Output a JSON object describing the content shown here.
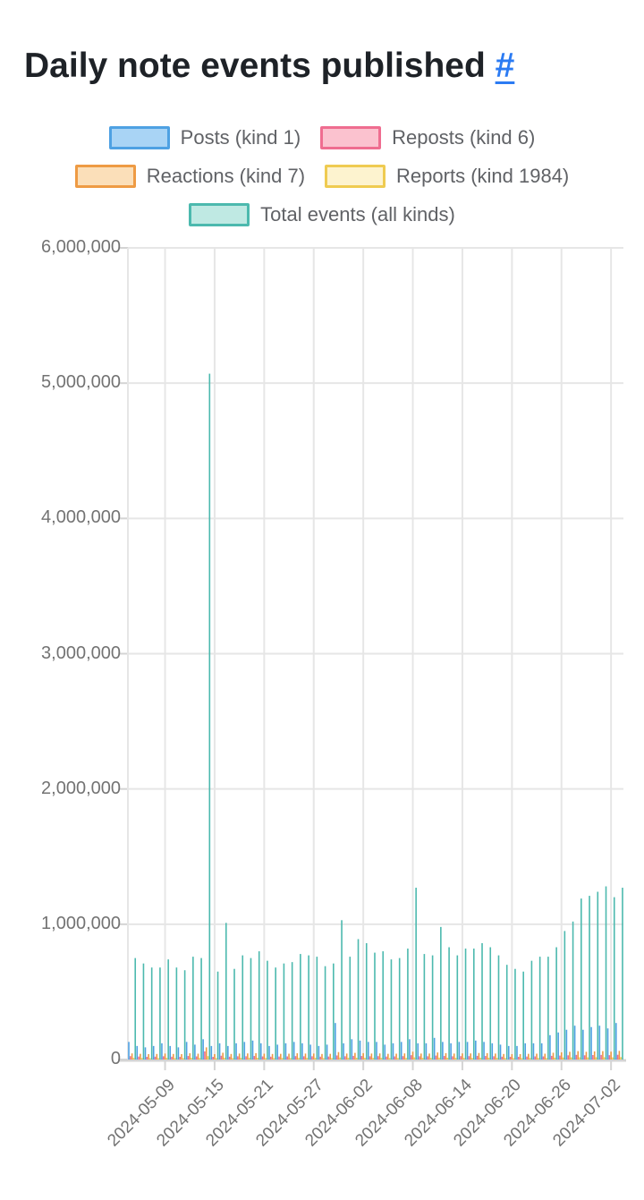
{
  "title": {
    "text": "Daily note events published",
    "anchor": "#"
  },
  "legend": {
    "rows": [
      [
        0,
        1
      ],
      [
        2,
        3
      ],
      [
        4
      ]
    ],
    "items": [
      {
        "label": "Posts (kind 1)",
        "fill": "#a9d4f5",
        "border": "#4ea1e3"
      },
      {
        "label": "Reposts (kind 6)",
        "fill": "#fbc2cf",
        "border": "#ef6d90"
      },
      {
        "label": "Reactions (kind 7)",
        "fill": "#fbdfb9",
        "border": "#ee9b44"
      },
      {
        "label": "Reports (kind 1984)",
        "fill": "#fdf3cf",
        "border": "#efcb51"
      },
      {
        "label": "Total events (all kinds)",
        "fill": "#bfe9e3",
        "border": "#4cb9ae"
      }
    ]
  },
  "chart_data": {
    "type": "bar",
    "title": "Daily note events published",
    "xlabel": "",
    "ylabel": "",
    "ylim": [
      0,
      6000000
    ],
    "grid": true,
    "legend_position": "top",
    "y_tick_labels": [
      "6,000,000",
      "5,000,000",
      "4,000,000",
      "3,000,000",
      "2,000,000",
      "1,000,000",
      "0"
    ],
    "y_tick_values": [
      6000000,
      5000000,
      4000000,
      3000000,
      2000000,
      1000000,
      0
    ],
    "x_tick_labels": [
      "2024-05-09",
      "2024-05-15",
      "2024-05-21",
      "2024-05-27",
      "2024-06-02",
      "2024-06-08",
      "2024-06-14",
      "2024-06-20",
      "2024-06-26",
      "2024-07-02"
    ],
    "dates": [
      "2024-05-05",
      "2024-05-06",
      "2024-05-07",
      "2024-05-08",
      "2024-05-09",
      "2024-05-10",
      "2024-05-11",
      "2024-05-12",
      "2024-05-13",
      "2024-05-14",
      "2024-05-15",
      "2024-05-16",
      "2024-05-17",
      "2024-05-18",
      "2024-05-19",
      "2024-05-20",
      "2024-05-21",
      "2024-05-22",
      "2024-05-23",
      "2024-05-24",
      "2024-05-25",
      "2024-05-26",
      "2024-05-27",
      "2024-05-28",
      "2024-05-29",
      "2024-05-30",
      "2024-05-31",
      "2024-06-01",
      "2024-06-02",
      "2024-06-03",
      "2024-06-04",
      "2024-06-05",
      "2024-06-06",
      "2024-06-07",
      "2024-06-08",
      "2024-06-09",
      "2024-06-10",
      "2024-06-11",
      "2024-06-12",
      "2024-06-13",
      "2024-06-14",
      "2024-06-15",
      "2024-06-16",
      "2024-06-17",
      "2024-06-18",
      "2024-06-19",
      "2024-06-20",
      "2024-06-21",
      "2024-06-22",
      "2024-06-23",
      "2024-06-24",
      "2024-06-25",
      "2024-06-26",
      "2024-06-27",
      "2024-06-28",
      "2024-06-29",
      "2024-06-30",
      "2024-07-01",
      "2024-07-02",
      "2024-07-03"
    ],
    "series": [
      {
        "name": "Posts (kind 1)",
        "color": "#4ea1e3",
        "values": [
          130000,
          100000,
          90000,
          100000,
          120000,
          100000,
          90000,
          130000,
          110000,
          150000,
          100000,
          120000,
          100000,
          120000,
          130000,
          140000,
          120000,
          100000,
          110000,
          120000,
          130000,
          120000,
          110000,
          100000,
          110000,
          270000,
          120000,
          150000,
          140000,
          130000,
          130000,
          110000,
          120000,
          130000,
          150000,
          120000,
          120000,
          160000,
          130000,
          120000,
          130000,
          130000,
          140000,
          130000,
          120000,
          110000,
          100000,
          100000,
          120000,
          120000,
          120000,
          180000,
          200000,
          220000,
          250000,
          220000,
          240000,
          250000,
          230000,
          270000
        ]
      },
      {
        "name": "Reposts (kind 6)",
        "color": "#ef6d90",
        "values": [
          25000,
          22000,
          20000,
          21000,
          24000,
          21000,
          20000,
          26000,
          23000,
          60000,
          20000,
          28000,
          21000,
          24000,
          24000,
          26000,
          23000,
          21000,
          22000,
          23000,
          25000,
          24000,
          24000,
          21000,
          22000,
          30000,
          24000,
          27000,
          26000,
          24000,
          25000,
          22000,
          23000,
          25000,
          32000,
          24000,
          24000,
          29000,
          26000,
          24000,
          25000,
          25000,
          27000,
          26000,
          24000,
          21000,
          20000,
          20000,
          22000,
          23000,
          23000,
          27000,
          29000,
          31000,
          34000,
          31000,
          33000,
          34000,
          32000,
          35000
        ]
      },
      {
        "name": "Reactions (kind 7)",
        "color": "#ee9b44",
        "values": [
          45000,
          42000,
          40000,
          41000,
          44000,
          41000,
          40000,
          46000,
          43000,
          90000,
          40000,
          50000,
          41000,
          44000,
          45000,
          47000,
          43000,
          41000,
          42000,
          43000,
          46000,
          44000,
          44000,
          41000,
          42000,
          55000,
          44000,
          49000,
          47000,
          44000,
          45000,
          42000,
          43000,
          45000,
          58000,
          44000,
          44000,
          52000,
          47000,
          44000,
          45000,
          45000,
          48000,
          47000,
          44000,
          41000,
          40000,
          40000,
          42000,
          43000,
          43000,
          50000,
          53000,
          57000,
          62000,
          57000,
          60000,
          62000,
          58000,
          64000
        ]
      },
      {
        "name": "Reports (kind 1984)",
        "color": "#efcb51",
        "values": [
          12000,
          11000,
          10000,
          10000,
          12000,
          10000,
          10000,
          13000,
          11000,
          25000,
          10000,
          14000,
          10000,
          12000,
          12000,
          13000,
          11000,
          10000,
          11000,
          11000,
          12000,
          12000,
          12000,
          10000,
          11000,
          15000,
          12000,
          13000,
          13000,
          12000,
          12000,
          11000,
          11000,
          12000,
          16000,
          12000,
          12000,
          14000,
          13000,
          12000,
          12000,
          12000,
          13000,
          13000,
          12000,
          11000,
          10000,
          10000,
          11000,
          11000,
          11000,
          14000,
          15000,
          16000,
          17000,
          16000,
          17000,
          17000,
          16000,
          18000
        ]
      },
      {
        "name": "Total events (all kinds)",
        "color": "#4cb9ae",
        "values": [
          750000,
          710000,
          680000,
          680000,
          740000,
          680000,
          660000,
          760000,
          750000,
          5070000,
          650000,
          1010000,
          670000,
          770000,
          750000,
          800000,
          730000,
          680000,
          710000,
          720000,
          780000,
          770000,
          760000,
          690000,
          710000,
          1030000,
          760000,
          890000,
          860000,
          790000,
          800000,
          740000,
          750000,
          820000,
          1270000,
          780000,
          770000,
          980000,
          830000,
          770000,
          820000,
          820000,
          860000,
          830000,
          770000,
          700000,
          670000,
          650000,
          730000,
          760000,
          760000,
          830000,
          950000,
          1020000,
          1190000,
          1210000,
          1240000,
          1280000,
          1200000,
          1270000
        ]
      }
    ],
    "colors": {
      "grid": "#e6e6e6",
      "axis": "#d4d4d4",
      "tick_text": "#737373",
      "link": "#2b7bf3"
    }
  }
}
